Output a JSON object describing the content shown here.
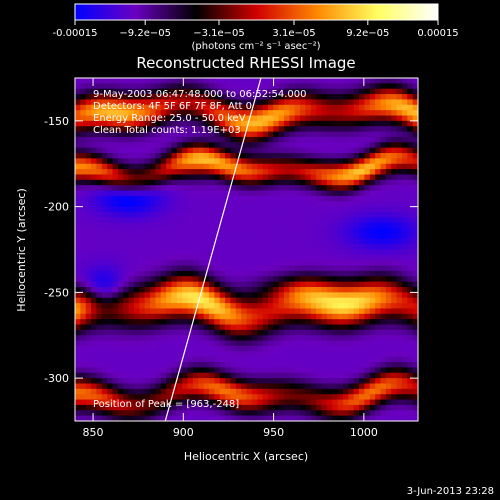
{
  "colorbar": {
    "ticks": [
      "-0.00015",
      "−9.2e−05",
      "−3.1e−05",
      "3.1e−05",
      "9.2e−05",
      "0.00015"
    ],
    "tick_values": [
      -0.00015,
      -9.2e-05,
      -3.1e-05,
      3.1e-05,
      9.2e-05,
      0.00015
    ],
    "range": [
      -0.00015,
      0.00015
    ],
    "unit_label": "(photons cm⁻² s⁻¹ asec⁻²)",
    "colors": [
      "#0000ff",
      "#6a00c0",
      "#000000",
      "#d00000",
      "#ff8800",
      "#ffff60",
      "#ffffff"
    ]
  },
  "footer": {
    "timestamp": "3-Jun-2013 23:28"
  },
  "chart_data": {
    "type": "heatmap",
    "title": "Reconstructed RHESSI Image",
    "xlabel": "Heliocentric X (arcsec)",
    "ylabel": "Heliocentric Y (arcsec)",
    "xlim": [
      840,
      1030
    ],
    "ylim": [
      -325,
      -125
    ],
    "xticks": [
      850,
      900,
      950,
      1000
    ],
    "yticks": [
      -150,
      -200,
      -250,
      -300
    ],
    "annotations": [
      "9-May-2003 06:47:48.000 to 06:52:54.000",
      "Detectors: 4F 5F 6F 7F 8F, Att 0",
      "Energy Range: 25.0 - 50.0 keV",
      "Clean    Total counts: 1.19E+03"
    ],
    "peak_label": "Position of Peak = [963,-248]",
    "peak": [
      963,
      -248
    ],
    "limb_line": [
      [
        890,
        -325
      ],
      [
        943,
        -125
      ]
    ],
    "bands": [
      {
        "y": -310,
        "amp": 0.7,
        "width": 9
      },
      {
        "y": -258,
        "amp": 0.95,
        "width": 12
      },
      {
        "y": -178,
        "amp": 0.75,
        "width": 8
      },
      {
        "y": -145,
        "amp": 0.85,
        "width": 10
      }
    ],
    "blobs": [
      {
        "x": 963,
        "y": -248,
        "amp": 0.25,
        "sx": 22,
        "sy": 8
      },
      {
        "x": 905,
        "y": -175,
        "amp": 0.25,
        "sx": 14,
        "sy": 10
      },
      {
        "x": 985,
        "y": -180,
        "amp": 0.2,
        "sx": 25,
        "sy": 7
      },
      {
        "x": 855,
        "y": -250,
        "amp": -0.45,
        "sx": 12,
        "sy": 12
      },
      {
        "x": 870,
        "y": -195,
        "amp": -0.3,
        "sx": 18,
        "sy": 10
      },
      {
        "x": 1010,
        "y": -215,
        "amp": -0.25,
        "sx": 20,
        "sy": 10
      }
    ]
  }
}
